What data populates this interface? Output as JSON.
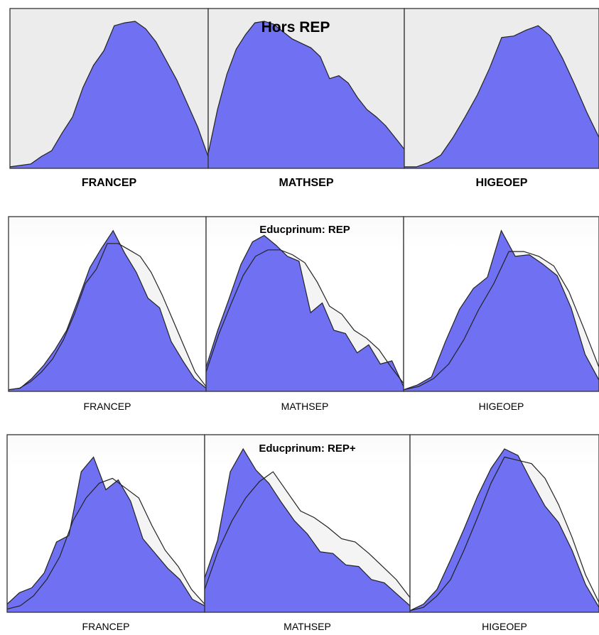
{
  "colors": {
    "fill": "#6f70f2",
    "outline": "#222222",
    "ghost_fill": "#f4f4f4",
    "panel_bg_top": "#ececec",
    "background": "#ffffff"
  },
  "chart_data": [
    {
      "type": "area",
      "title": "Hors REP",
      "y_label": "",
      "panels": [
        {
          "xlabel": "FRANCEP",
          "series": [
            {
              "values": [
                0.01,
                0.02,
                0.03,
                0.08,
                0.12,
                0.24,
                0.35,
                0.55,
                0.7,
                0.8,
                0.97,
                0.99,
                1,
                0.95,
                0.86,
                0.73,
                0.6,
                0.44,
                0.28,
                0.08
              ]
            }
          ]
        },
        {
          "xlabel": "MATHSEP",
          "series": [
            {
              "values": [
                0.1,
                0.4,
                0.64,
                0.81,
                0.91,
                0.99,
                1,
                0.98,
                0.93,
                0.88,
                0.85,
                0.82,
                0.76,
                0.61,
                0.63,
                0.58,
                0.48,
                0.4,
                0.35,
                0.29,
                0.21,
                0.13
              ]
            }
          ]
        },
        {
          "xlabel": "HIGEOEP",
          "series": [
            {
              "values": [
                0.01,
                0.01,
                0.04,
                0.09,
                0.21,
                0.35,
                0.5,
                0.68,
                0.89,
                0.9,
                0.94,
                0.97,
                0.9,
                0.75,
                0.57,
                0.38,
                0.21
              ]
            }
          ]
        }
      ]
    },
    {
      "type": "area",
      "title": "Educprinum: REP",
      "y_label": "",
      "panels": [
        {
          "xlabel": "FRANCEP",
          "series": [
            {
              "values": [
                0.01,
                0.02,
                0.08,
                0.16,
                0.26,
                0.38,
                0.57,
                0.77,
                0.89,
                1,
                0.86,
                0.74,
                0.58,
                0.52,
                0.31,
                0.19,
                0.08,
                0.02
              ]
            },
            {
              "values": [
                0.01,
                0.02,
                0.06,
                0.12,
                0.2,
                0.32,
                0.48,
                0.67,
                0.76,
                0.92,
                0.92,
                0.88,
                0.84,
                0.74,
                0.6,
                0.44,
                0.28,
                0.12,
                0.03
              ]
            }
          ]
        },
        {
          "xlabel": "MATHSEP",
          "series": [
            {
              "values": [
                0.15,
                0.38,
                0.58,
                0.79,
                0.93,
                0.97,
                0.91,
                0.84,
                0.81,
                0.49,
                0.55,
                0.38,
                0.36,
                0.24,
                0.29,
                0.17,
                0.19,
                0.03
              ]
            },
            {
              "values": [
                0.12,
                0.35,
                0.54,
                0.72,
                0.84,
                0.88,
                0.88,
                0.85,
                0.8,
                0.68,
                0.53,
                0.48,
                0.38,
                0.33,
                0.26,
                0.15,
                0.05
              ]
            }
          ]
        },
        {
          "xlabel": "HIGEOEP",
          "series": [
            {
              "values": [
                0.01,
                0.04,
                0.09,
                0.31,
                0.51,
                0.64,
                0.71,
                1,
                0.84,
                0.85,
                0.79,
                0.72,
                0.52,
                0.23,
                0.07
              ]
            },
            {
              "values": [
                0.01,
                0.03,
                0.08,
                0.17,
                0.32,
                0.51,
                0.67,
                0.87,
                0.87,
                0.84,
                0.78,
                0.62,
                0.39,
                0.15
              ]
            }
          ]
        }
      ]
    },
    {
      "type": "area",
      "title": "Educprinum: REP+",
      "y_label": "",
      "panels": [
        {
          "xlabel": "FRANCEP",
          "series": [
            {
              "values": [
                0.05,
                0.12,
                0.15,
                0.24,
                0.43,
                0.47,
                0.86,
                0.95,
                0.75,
                0.81,
                0.68,
                0.45,
                0.36,
                0.27,
                0.2,
                0.08,
                0.04
              ]
            },
            {
              "values": [
                0.02,
                0.04,
                0.1,
                0.2,
                0.34,
                0.56,
                0.7,
                0.79,
                0.82,
                0.76,
                0.7,
                0.53,
                0.38,
                0.28,
                0.14,
                0.05
              ]
            }
          ]
        },
        {
          "xlabel": "MATHSEP",
          "series": [
            {
              "values": [
                0.21,
                0.44,
                0.86,
                1,
                0.87,
                0.79,
                0.67,
                0.56,
                0.48,
                0.37,
                0.36,
                0.29,
                0.28,
                0.2,
                0.18,
                0.11,
                0.04
              ]
            },
            {
              "values": [
                0.14,
                0.38,
                0.56,
                0.7,
                0.8,
                0.86,
                0.74,
                0.62,
                0.58,
                0.52,
                0.45,
                0.43,
                0.36,
                0.28,
                0.2,
                0.09
              ]
            }
          ]
        },
        {
          "xlabel": "HIGEOEP",
          "series": [
            {
              "values": [
                0.01,
                0.05,
                0.14,
                0.32,
                0.51,
                0.71,
                0.88,
                1,
                0.96,
                0.8,
                0.65,
                0.55,
                0.38,
                0.17,
                0.03
              ]
            },
            {
              "values": [
                0.01,
                0.03,
                0.1,
                0.2,
                0.38,
                0.58,
                0.79,
                0.95,
                0.93,
                0.91,
                0.82,
                0.66,
                0.46,
                0.23,
                0.06
              ]
            }
          ]
        }
      ]
    }
  ]
}
